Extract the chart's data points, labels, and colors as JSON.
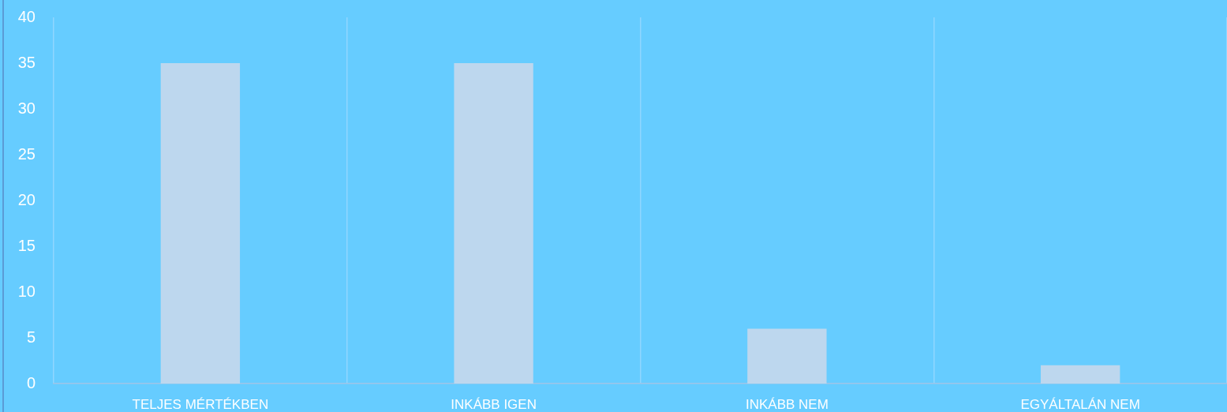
{
  "chart_data": {
    "type": "bar",
    "categories": [
      "TELJES MÉRTÉKBEN",
      "INKÁBB IGEN",
      "INKÁBB NEM",
      "EGYÁLTALÁN NEM"
    ],
    "values": [
      35,
      35,
      6,
      2
    ],
    "color": "#bdd7ee",
    "ylim": [
      0,
      40
    ],
    "yticks": [
      0,
      5,
      10,
      15,
      20,
      25,
      30,
      35,
      40
    ],
    "grid": "x"
  }
}
